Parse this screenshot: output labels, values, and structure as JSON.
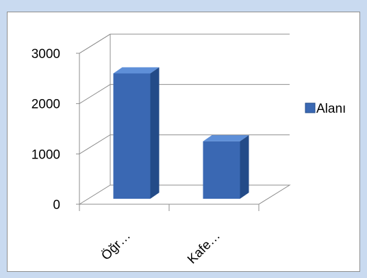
{
  "chart_data": {
    "type": "bar",
    "categories": [
      "Öğr…",
      "Kafe…"
    ],
    "series": [
      {
        "name": "Alanı",
        "values": [
          2600,
          1250
        ]
      }
    ],
    "y_ticks": [
      "0",
      "1000",
      "2000",
      "3000"
    ],
    "ylim": [
      0,
      3000
    ],
    "grid": true,
    "legend_position": "right",
    "colors": {
      "bar_front": "#3a68b3",
      "bar_top": "#5e8fd8",
      "bar_side": "#234b88",
      "grid": "#8c8c8c",
      "frame": "#c9daf0"
    }
  }
}
